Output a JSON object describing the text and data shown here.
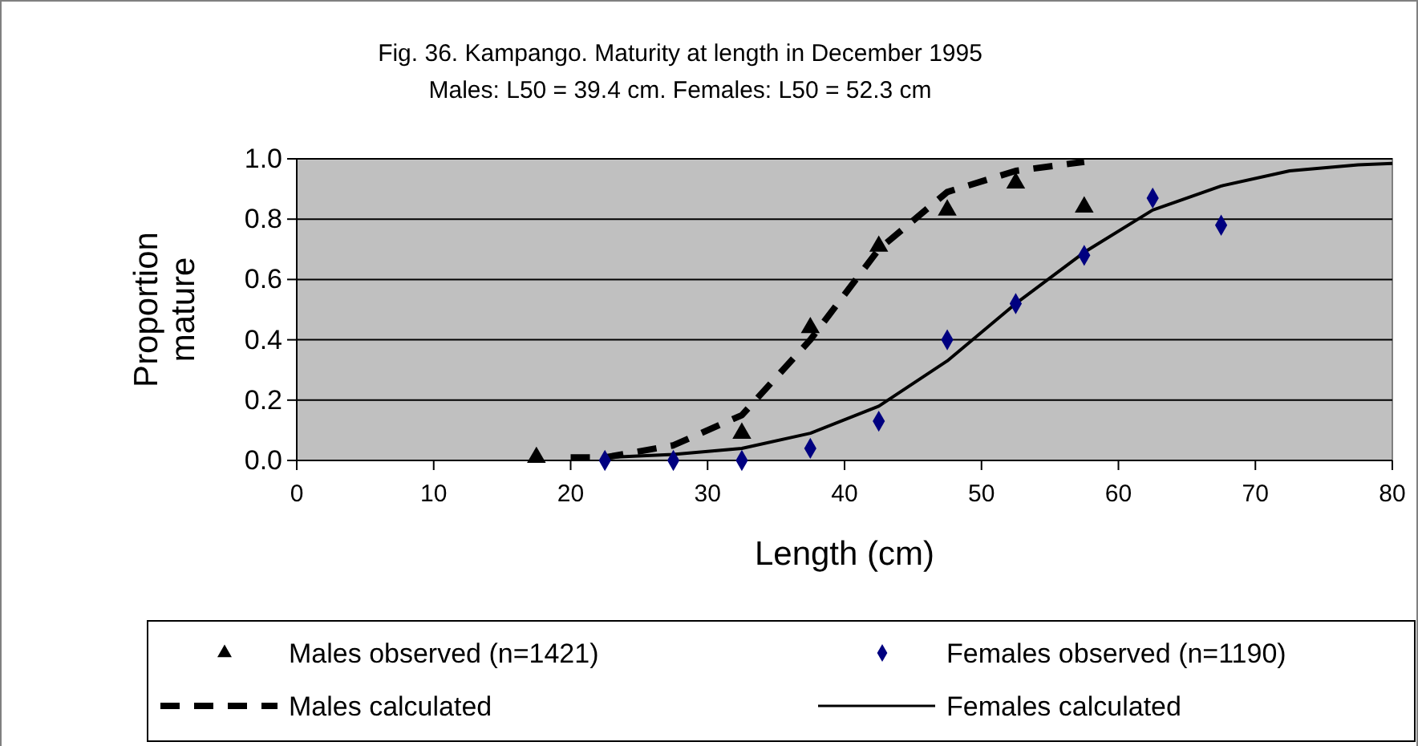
{
  "chart_data": {
    "type": "scatter",
    "title": "Fig. 36. Kampango. Maturity at length in December 1995",
    "subtitle": "Males: L50 = 39.4 cm. Females: L50 = 52.3 cm",
    "xlabel": "Length (cm)",
    "ylabel": "Proportion mature",
    "xlim": [
      0,
      80
    ],
    "xticks": [
      0,
      10,
      20,
      30,
      40,
      50,
      60,
      70,
      80
    ],
    "ylim": [
      0,
      1
    ],
    "yticks": [
      {
        "value": 0,
        "label": "0.0"
      },
      {
        "value": 0.2,
        "label": "0.2"
      },
      {
        "value": 0.4,
        "label": "0.4"
      },
      {
        "value": 0.6,
        "label": "0.6"
      },
      {
        "value": 0.8,
        "label": "0.8"
      },
      {
        "value": 1,
        "label": "1.0"
      }
    ],
    "grid": "y",
    "legend": "bottom",
    "series": [
      {
        "name": "Males observed (n=1421)",
        "marker": "triangle",
        "color": "#000000",
        "x": [
          17.5,
          32.5,
          37.5,
          42.5,
          47.5,
          52.5,
          57.5
        ],
        "values": [
          0.01,
          0.09,
          0.44,
          0.71,
          0.83,
          0.92,
          0.84
        ]
      },
      {
        "name": "Females observed (n=1190)",
        "marker": "diamond",
        "color": "#000080",
        "x": [
          22.5,
          27.5,
          32.5,
          37.5,
          42.5,
          47.5,
          52.5,
          57.5,
          62.5,
          67.5
        ],
        "values": [
          0,
          0,
          0,
          0.04,
          0.13,
          0.4,
          0.52,
          0.68,
          0.87,
          0.78
        ]
      },
      {
        "name": "Males calculated",
        "type": "line",
        "line_style": "dashed",
        "marker": "none",
        "color": "#000000",
        "x": [
          20,
          22.5,
          27.5,
          32.5,
          37.5,
          42.5,
          47.5,
          52.5,
          57.5
        ],
        "values": [
          0.01,
          0.01,
          0.05,
          0.15,
          0.4,
          0.7,
          0.89,
          0.96,
          0.99
        ]
      },
      {
        "name": "Females calculated",
        "type": "line",
        "line_style": "solid",
        "marker": "none",
        "color": "#000000",
        "x": [
          22.5,
          27.5,
          32.5,
          37.5,
          42.5,
          47.5,
          52.5,
          57.5,
          62.5,
          67.5,
          72.5,
          77.5,
          80
        ],
        "values": [
          0.01,
          0.02,
          0.04,
          0.09,
          0.18,
          0.33,
          0.52,
          0.69,
          0.83,
          0.91,
          0.96,
          0.98,
          0.985
        ]
      }
    ]
  }
}
